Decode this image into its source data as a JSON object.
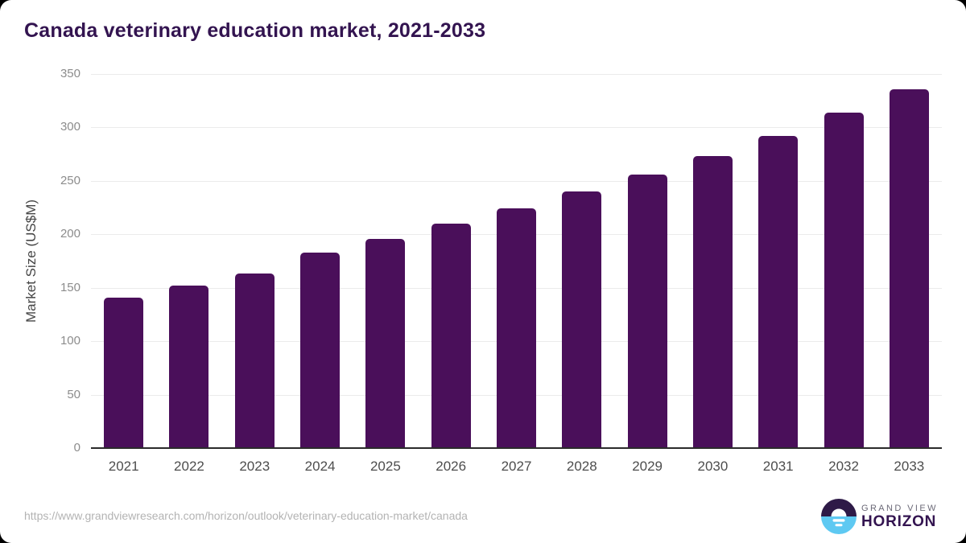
{
  "chart_data": {
    "type": "bar",
    "title": "Canada veterinary education market, 2021-2033",
    "categories": [
      "2021",
      "2022",
      "2023",
      "2024",
      "2025",
      "2026",
      "2027",
      "2028",
      "2029",
      "2030",
      "2031",
      "2032",
      "2033"
    ],
    "values": [
      141,
      152,
      163,
      183,
      196,
      210,
      224,
      240,
      256,
      273,
      292,
      314,
      336
    ],
    "xlabel": "",
    "ylabel": "Market Size (US$M)",
    "ylim": [
      0,
      350
    ],
    "yticks": [
      0,
      50,
      100,
      150,
      200,
      250,
      300,
      350
    ],
    "grid": "horizontal",
    "legend": null,
    "bar_color": "#4a0f5a"
  },
  "footer": {
    "source_url": "https://www.grandviewresearch.com/horizon/outlook/veterinary-education-market/canada",
    "logo": {
      "line1": "GRAND VIEW",
      "line2": "HORIZON",
      "icon": "horizon-sunset-circle"
    }
  },
  "colors": {
    "title": "#331450",
    "bar": "#4a0f5a",
    "gridline": "#ebebeb",
    "axis_line": "#2b2b2b",
    "y_tick": "#8c8c8c",
    "x_tick": "#4d4d4d",
    "y_label": "#454545",
    "source_url": "#b3b3b3",
    "logo_dark": "#2e1a47",
    "logo_blue": "#5ec9f2",
    "logo_gray": "#6b6977"
  }
}
